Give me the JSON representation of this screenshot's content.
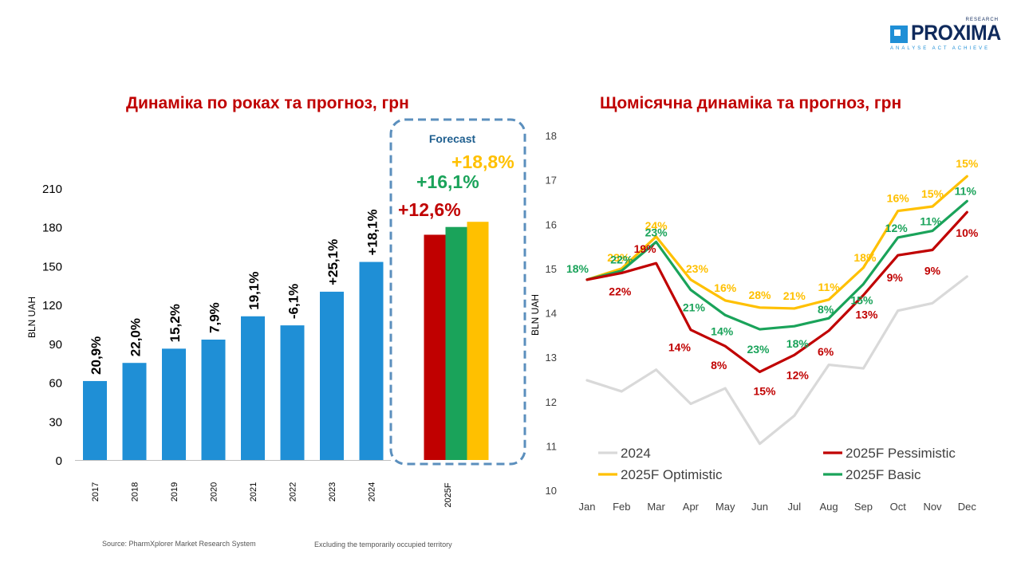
{
  "logo": {
    "text": "PROXIMA",
    "top": "RESEARCH",
    "tagline": "ANALYSE  ACT  ACHIEVE"
  },
  "footer": {
    "source": "Source: PharmXplorer Market Research System",
    "note": "Excluding the temporarily occupied territory"
  },
  "colors": {
    "bar": "#1f8fd6",
    "pessimistic": "#c00000",
    "basic": "#1aa35a",
    "optimistic": "#ffc000",
    "y2024": "#d9d9d9",
    "forecast_box": "#5b8fbd",
    "forecast_label": "#1f5f8f"
  },
  "chart_data": [
    {
      "type": "bar",
      "title": "Динаміка по роках та прогноз, грн",
      "ylabel": "BLN UAH",
      "ylim": [
        0,
        210
      ],
      "yticks": [
        0,
        30,
        60,
        90,
        120,
        150,
        180,
        210
      ],
      "categories": [
        "2017",
        "2018",
        "2019",
        "2020",
        "2021",
        "2022",
        "2023",
        "2024"
      ],
      "values": [
        61,
        75,
        86,
        93,
        111,
        104,
        130,
        153
      ],
      "growth_labels": [
        "20,9%",
        "22,0%",
        "15,2%",
        "7,9%",
        "19,1%",
        "-6,1%",
        "+25,1%",
        "+18,1%"
      ],
      "forecast": {
        "label": "Forecast",
        "category": "2025F",
        "bars": [
          {
            "name": "Pessimistic",
            "value": 174,
            "label": "+12,6%",
            "color": "#c00000"
          },
          {
            "name": "Basic",
            "value": 180,
            "label": "+16,1%",
            "color": "#1aa35a"
          },
          {
            "name": "Optimistic",
            "value": 184,
            "label": "+18,8%",
            "color": "#ffc000"
          }
        ]
      }
    },
    {
      "type": "line",
      "title": "Щомісячна динаміка та прогноз, грн",
      "ylabel": "BLN UAH",
      "ylim": [
        10,
        18
      ],
      "yticks": [
        10,
        11,
        12,
        13,
        14,
        15,
        16,
        17,
        18
      ],
      "x": [
        "Jan",
        "Feb",
        "Mar",
        "Apr",
        "May",
        "Jun",
        "Jul",
        "Aug",
        "Sep",
        "Oct",
        "Nov",
        "Dec"
      ],
      "series": [
        {
          "name": "2024",
          "color": "#d9d9d9",
          "values": [
            12.48,
            12.23,
            12.72,
            11.95,
            12.3,
            11.05,
            11.68,
            12.83,
            12.75,
            14.05,
            14.22,
            14.82
          ],
          "labels": []
        },
        {
          "name": "2025F Optimistic",
          "color": "#ffc000",
          "values": [
            14.75,
            15.0,
            15.72,
            14.75,
            14.28,
            14.12,
            14.1,
            14.3,
            15.02,
            16.3,
            16.4,
            17.08
          ],
          "labels": [
            "",
            "23%",
            "24%",
            "23%",
            "16%",
            "28%",
            "21%",
            "11%",
            "18%",
            "16%",
            "15%",
            "15%"
          ]
        },
        {
          "name": "2025F Basic",
          "color": "#1aa35a",
          "values": [
            14.75,
            14.95,
            15.6,
            14.52,
            13.95,
            13.63,
            13.7,
            13.88,
            14.65,
            15.7,
            15.85,
            16.52
          ],
          "labels": [
            "18%",
            "22%",
            "23%",
            "21%",
            "14%",
            "23%",
            "18%",
            "8%",
            "15%",
            "12%",
            "11%",
            "11%"
          ]
        },
        {
          "name": "2025F Pessimistic",
          "color": "#c00000",
          "values": [
            14.75,
            14.9,
            15.12,
            13.62,
            13.25,
            12.67,
            13.05,
            13.6,
            14.4,
            15.3,
            15.42,
            16.27
          ],
          "labels": [
            "",
            "22%",
            "19%",
            "14%",
            "8%",
            "15%",
            "12%",
            "6%",
            "13%",
            "9%",
            "9%",
            "10%"
          ]
        }
      ],
      "legend": [
        {
          "name": "2024",
          "color": "#d9d9d9"
        },
        {
          "name": "2025F Pessimistic",
          "color": "#c00000"
        },
        {
          "name": "2025F Optimistic",
          "color": "#ffc000"
        },
        {
          "name": "2025F Basic",
          "color": "#1aa35a"
        }
      ],
      "legend_placement": "bottom"
    }
  ]
}
